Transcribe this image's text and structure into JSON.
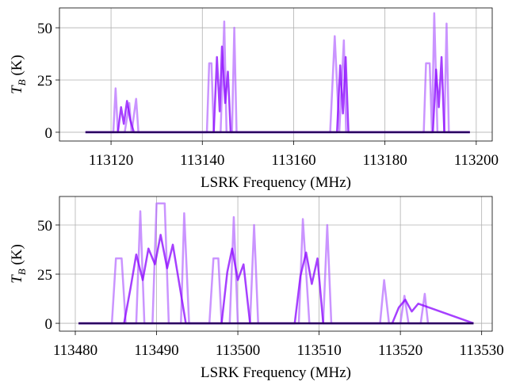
{
  "chart_data": [
    {
      "type": "line",
      "xlabel": "LSRK Frequency (MHz)",
      "ylabel": [
        "T",
        "B",
        " (K)"
      ],
      "xlim": [
        113108.7,
        113203.5
      ],
      "ylim": [
        -4.2,
        59.5
      ],
      "xticks": [
        113120,
        113140,
        113160,
        113180,
        113200
      ],
      "yticks": [
        0,
        25,
        50
      ],
      "grid": true,
      "series": [
        {
          "color": "#b366ff",
          "x": [
            113114.4,
            113120.5,
            113121,
            113121.5,
            113123,
            113124,
            113124.5,
            113125.5,
            113126,
            113141,
            113141.5,
            113142,
            113142.5,
            113144,
            113144.8,
            113145.3,
            113146.5,
            113147,
            113147.5,
            113168,
            113169,
            113170,
            113171,
            113171.5,
            113188.5,
            113189,
            113189.8,
            113190.3,
            113190.8,
            113191.5,
            113193,
            113193.5,
            113194,
            113198.6
          ],
          "values": [
            0,
            0,
            21,
            0,
            0,
            14,
            0,
            16,
            0,
            0,
            33,
            33,
            0,
            0,
            53,
            0,
            0,
            50,
            0,
            0,
            46,
            0,
            44,
            0,
            0,
            33,
            33,
            0,
            57,
            0,
            0,
            52,
            0,
            0
          ]
        },
        {
          "color": "#8800ff",
          "x": [
            113114.4,
            113121.5,
            113122.2,
            113122.8,
            113123.5,
            113124.2,
            113125,
            113142.5,
            113143.2,
            113143.8,
            113144.3,
            113145,
            113145.6,
            113146.2,
            113169.5,
            113170.2,
            113170.8,
            113171.4,
            113172,
            113190.5,
            113191.2,
            113191.8,
            113192.4,
            113193,
            113198.6
          ],
          "values": [
            0,
            0,
            12,
            4,
            15,
            6,
            0,
            0,
            36,
            10,
            41,
            14,
            29,
            0,
            0,
            32,
            9,
            36,
            0,
            0,
            30,
            12,
            36,
            0,
            0
          ]
        },
        {
          "color": "#2a0060",
          "x": [
            113114.4,
            113198.6
          ],
          "values": [
            0,
            0
          ]
        }
      ]
    },
    {
      "type": "line",
      "xlabel": "LSRK Frequency (MHz)",
      "ylabel": [
        "T",
        "B",
        " (K)"
      ],
      "xlim": [
        113478.05,
        113531.3
      ],
      "ylim": [
        -4,
        64.5
      ],
      "xticks": [
        113480,
        113490,
        113500,
        113510,
        113520,
        113530
      ],
      "yticks": [
        0,
        25,
        50
      ],
      "grid": true,
      "series": [
        {
          "color": "#b366ff",
          "x": [
            113480.4,
            113484.5,
            113485,
            113485.7,
            113486.2,
            113487.5,
            113488,
            113488.5,
            113489.5,
            113490,
            113491,
            113491.5,
            113493,
            113493.4,
            113494,
            113496.5,
            113497,
            113497.6,
            113498,
            113499,
            113499.5,
            113500,
            113501.5,
            113502,
            113502.5,
            113507.5,
            113508,
            113508.8,
            113510.5,
            113511,
            113511.5,
            113517.5,
            113518,
            113518.6,
            113520,
            113520.5,
            113521,
            113522.5,
            113523,
            113523.4,
            113529
          ],
          "values": [
            0,
            0,
            33,
            33,
            0,
            0,
            57,
            0,
            0,
            61,
            61,
            0,
            0,
            56,
            0,
            0,
            33,
            33,
            0,
            0,
            54,
            0,
            0,
            50,
            0,
            0,
            53,
            0,
            0,
            50,
            0,
            0,
            22,
            0,
            0,
            14,
            0,
            0,
            15,
            0,
            0
          ]
        },
        {
          "color": "#8800ff",
          "x": [
            113480.4,
            113486,
            113486.8,
            113487.5,
            113488.3,
            113489,
            113489.8,
            113490.5,
            113491.3,
            113492,
            113492.8,
            113493.6,
            113498,
            113498.7,
            113499.3,
            113500,
            113500.7,
            113501.5,
            113507,
            113507.7,
            113508.4,
            113509.1,
            113509.8,
            113510.5,
            113519,
            113519.8,
            113520.6,
            113521.4,
            113522.2,
            113529
          ],
          "values": [
            0,
            0,
            18,
            35,
            22,
            38,
            30,
            45,
            28,
            40,
            20,
            0,
            0,
            26,
            38,
            22,
            30,
            0,
            0,
            24,
            36,
            20,
            33,
            0,
            0,
            8,
            12,
            6,
            10,
            0
          ]
        },
        {
          "color": "#2a0060",
          "x": [
            113480.4,
            113529
          ],
          "values": [
            0,
            0
          ]
        }
      ]
    }
  ]
}
